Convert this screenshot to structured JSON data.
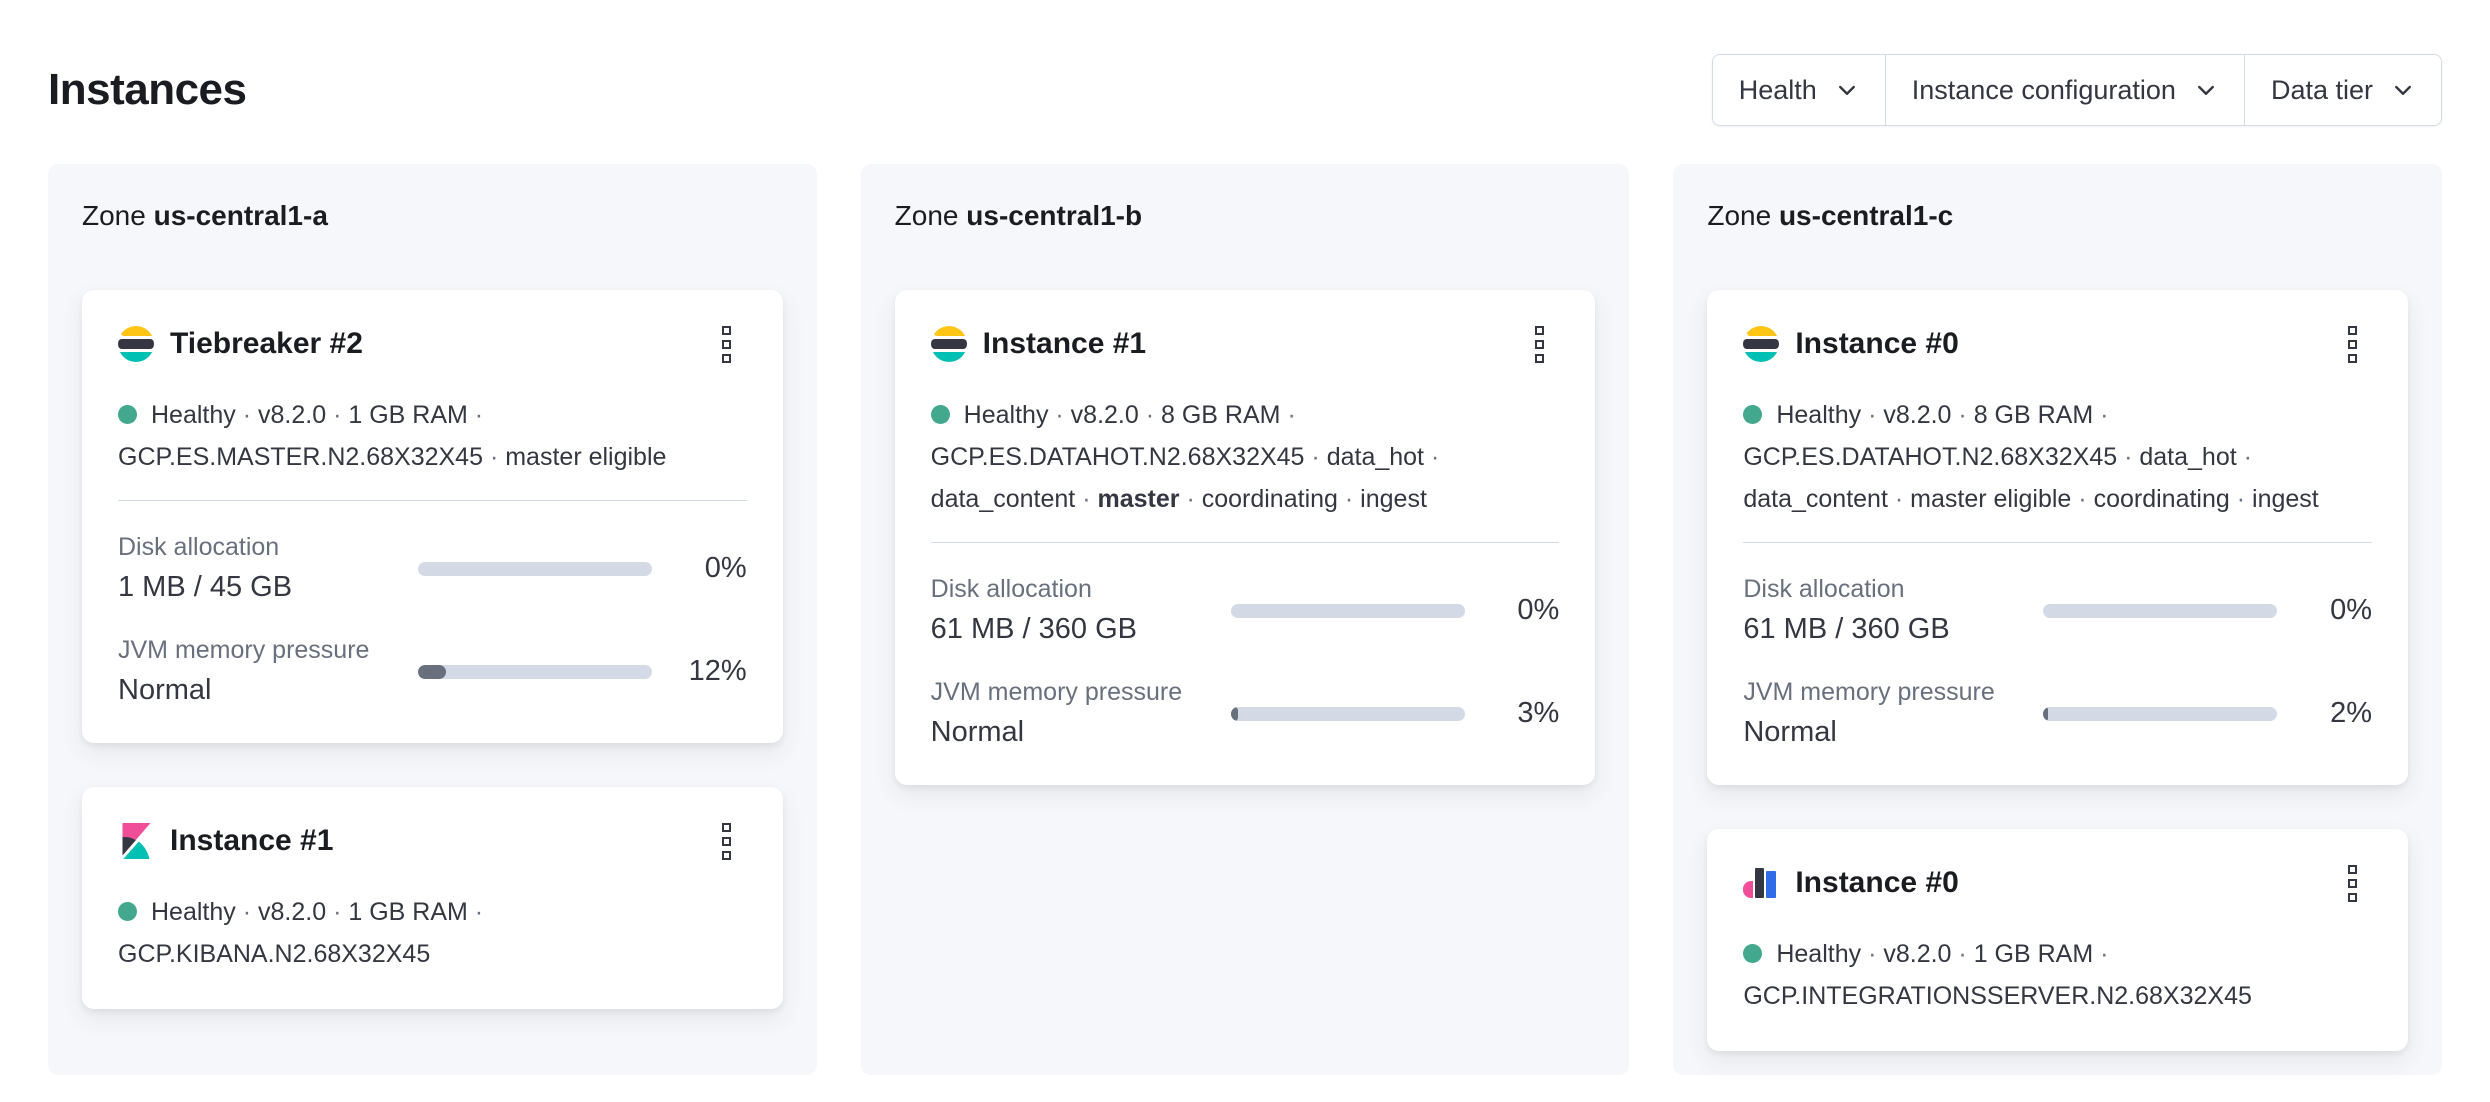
{
  "page": {
    "title": "Instances"
  },
  "filters": {
    "items": [
      {
        "label": "Health"
      },
      {
        "label": "Instance configuration"
      },
      {
        "label": "Data tier"
      }
    ]
  },
  "zones": [
    {
      "prefix": "Zone",
      "name": "us-central1-a",
      "instances": [
        {
          "title": "Tiebreaker #2",
          "logo": "elasticsearch",
          "health": "Healthy",
          "meta": [
            {
              "text": "Healthy"
            },
            {
              "text": "v8.2.0"
            },
            {
              "text": "1 GB RAM"
            },
            {
              "text": "GCP.ES.MASTER.N2.68X32X45"
            },
            {
              "text": "master eligible"
            }
          ],
          "metrics": [
            {
              "label": "Disk allocation",
              "value": "1 MB / 45 GB",
              "percent": 0,
              "percent_label": "0%"
            },
            {
              "label": "JVM memory pressure",
              "value": "Normal",
              "percent": 12,
              "percent_label": "12%"
            }
          ]
        },
        {
          "title": "Instance #1",
          "logo": "kibana",
          "health": "Healthy",
          "meta": [
            {
              "text": "Healthy"
            },
            {
              "text": "v8.2.0"
            },
            {
              "text": "1 GB RAM"
            },
            {
              "text": "GCP.KIBANA.N2.68X32X45"
            }
          ],
          "metrics": []
        }
      ]
    },
    {
      "prefix": "Zone",
      "name": "us-central1-b",
      "instances": [
        {
          "title": "Instance #1",
          "logo": "elasticsearch",
          "health": "Healthy",
          "meta": [
            {
              "text": "Healthy"
            },
            {
              "text": "v8.2.0"
            },
            {
              "text": "8 GB RAM"
            },
            {
              "text": "GCP.ES.DATAHOT.N2.68X32X45"
            },
            {
              "text": "data_hot"
            },
            {
              "text": "data_content"
            },
            {
              "text": "master",
              "bold": true
            },
            {
              "text": "coordinating"
            },
            {
              "text": "ingest"
            }
          ],
          "metrics": [
            {
              "label": "Disk allocation",
              "value": "61 MB / 360 GB",
              "percent": 0,
              "percent_label": "0%"
            },
            {
              "label": "JVM memory pressure",
              "value": "Normal",
              "percent": 3,
              "percent_label": "3%"
            }
          ]
        }
      ]
    },
    {
      "prefix": "Zone",
      "name": "us-central1-c",
      "instances": [
        {
          "title": "Instance #0",
          "logo": "elasticsearch",
          "health": "Healthy",
          "meta": [
            {
              "text": "Healthy"
            },
            {
              "text": "v8.2.0"
            },
            {
              "text": "8 GB RAM"
            },
            {
              "text": "GCP.ES.DATAHOT.N2.68X32X45"
            },
            {
              "text": "data_hot"
            },
            {
              "text": "data_content"
            },
            {
              "text": "master eligible"
            },
            {
              "text": "coordinating"
            },
            {
              "text": "ingest"
            }
          ],
          "metrics": [
            {
              "label": "Disk allocation",
              "value": "61 MB / 360 GB",
              "percent": 0,
              "percent_label": "0%"
            },
            {
              "label": "JVM memory pressure",
              "value": "Normal",
              "percent": 2,
              "percent_label": "2%"
            }
          ]
        },
        {
          "title": "Instance #0",
          "logo": "integrations-server",
          "health": "Healthy",
          "meta": [
            {
              "text": "Healthy"
            },
            {
              "text": "v8.2.0"
            },
            {
              "text": "1 GB RAM"
            },
            {
              "text": "GCP.INTEGRATIONSSERVER.N2.68X32X45"
            }
          ],
          "metrics": []
        }
      ]
    }
  ],
  "colors": {
    "brand_yellow": "#FEC514",
    "brand_teal": "#00BFB3",
    "brand_pink": "#F04E98",
    "brand_dark": "#343741",
    "brand_blue": "#2F6DE8",
    "health_dot": "#43A88E",
    "panel_background": "#F5F7FA",
    "progress_track": "#D3DAE6",
    "progress_fill": "#69707D",
    "separator": "#D3DAE6"
  }
}
